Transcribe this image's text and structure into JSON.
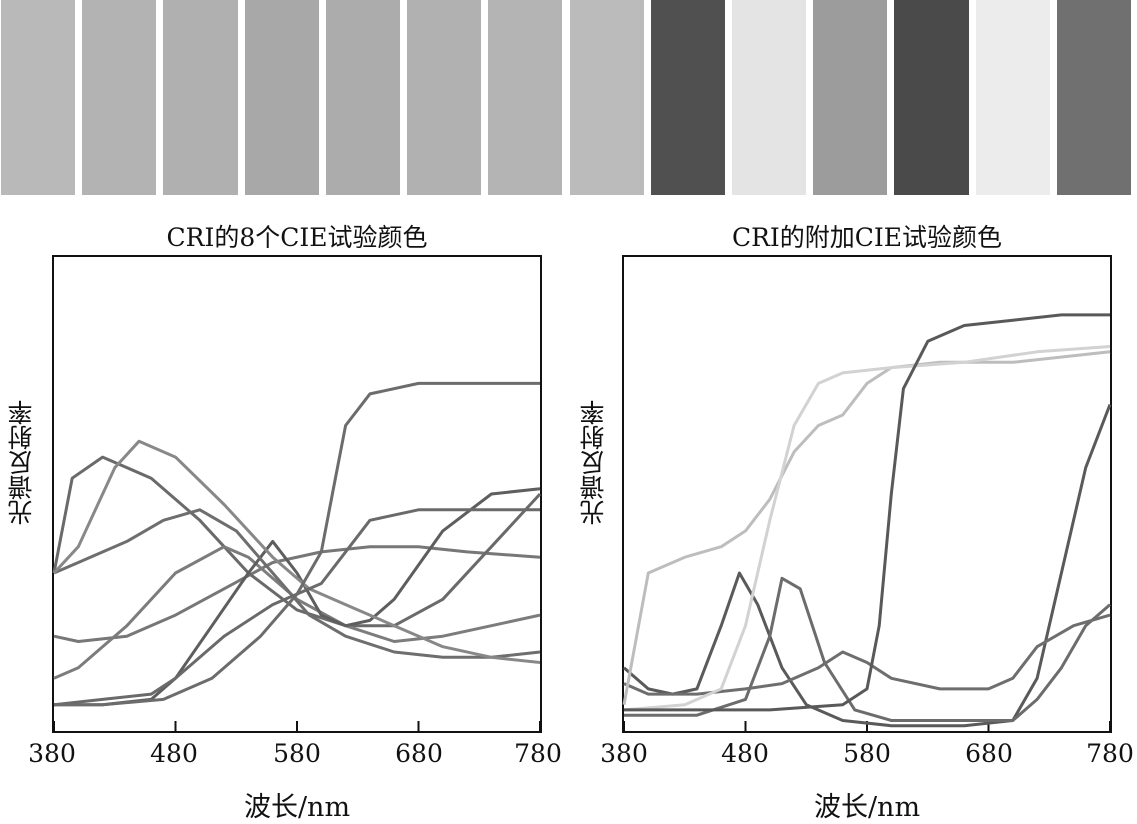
{
  "swatches": [
    "#b9b9b9",
    "#b3b3b3",
    "#b0b0b0",
    "#a8a8a8",
    "#acacac",
    "#b1b1b1",
    "#b4b4b4",
    "#bbbbbb",
    "#505050",
    "#e4e4e4",
    "#9c9c9c",
    "#4a4a4a",
    "#ececec",
    "#707070"
  ],
  "chart_data": [
    {
      "type": "line",
      "title": "CRI的8个CIE试验颜色",
      "xlabel": "波长/nm",
      "ylabel": "光谱反射率",
      "xlim": [
        380,
        780
      ],
      "x_ticks": [
        "380",
        "480",
        "580",
        "680",
        "780"
      ],
      "grid": false,
      "series": [
        {
          "color": "#777777",
          "points": [
            [
              380,
              0.18
            ],
            [
              400,
              0.17
            ],
            [
              440,
              0.18
            ],
            [
              480,
              0.22
            ],
            [
              520,
              0.27
            ],
            [
              560,
              0.32
            ],
            [
              600,
              0.34
            ],
            [
              640,
              0.35
            ],
            [
              680,
              0.35
            ],
            [
              720,
              0.34
            ],
            [
              780,
              0.33
            ]
          ]
        },
        {
          "color": "#6a6a6a",
          "points": [
            [
              380,
              0.3
            ],
            [
              395,
              0.48
            ],
            [
              420,
              0.52
            ],
            [
              460,
              0.48
            ],
            [
              500,
              0.4
            ],
            [
              540,
              0.3
            ],
            [
              580,
              0.23
            ],
            [
              620,
              0.2
            ],
            [
              660,
              0.2
            ],
            [
              700,
              0.25
            ],
            [
              740,
              0.35
            ],
            [
              780,
              0.45
            ]
          ]
        },
        {
          "color": "#7c7c7c",
          "points": [
            [
              380,
              0.1
            ],
            [
              400,
              0.12
            ],
            [
              440,
              0.2
            ],
            [
              480,
              0.3
            ],
            [
              520,
              0.35
            ],
            [
              540,
              0.33
            ],
            [
              580,
              0.25
            ],
            [
              620,
              0.2
            ],
            [
              660,
              0.17
            ],
            [
              700,
              0.18
            ],
            [
              740,
              0.2
            ],
            [
              780,
              0.22
            ]
          ]
        },
        {
          "color": "#5e5e5e",
          "points": [
            [
              380,
              0.05
            ],
            [
              420,
              0.05
            ],
            [
              460,
              0.06
            ],
            [
              480,
              0.1
            ],
            [
              510,
              0.2
            ],
            [
              540,
              0.3
            ],
            [
              560,
              0.36
            ],
            [
              580,
              0.3
            ],
            [
              600,
              0.22
            ],
            [
              620,
              0.2
            ],
            [
              640,
              0.21
            ],
            [
              660,
              0.25
            ],
            [
              700,
              0.38
            ],
            [
              740,
              0.45
            ],
            [
              780,
              0.46
            ]
          ]
        },
        {
          "color": "#6e6e6e",
          "points": [
            [
              380,
              0.3
            ],
            [
              400,
              0.32
            ],
            [
              440,
              0.36
            ],
            [
              470,
              0.4
            ],
            [
              500,
              0.42
            ],
            [
              530,
              0.38
            ],
            [
              560,
              0.3
            ],
            [
              590,
              0.22
            ],
            [
              620,
              0.18
            ],
            [
              660,
              0.15
            ],
            [
              700,
              0.14
            ],
            [
              740,
              0.14
            ],
            [
              780,
              0.15
            ]
          ]
        },
        {
          "color": "#888888",
          "points": [
            [
              380,
              0.3
            ],
            [
              400,
              0.35
            ],
            [
              430,
              0.5
            ],
            [
              450,
              0.55
            ],
            [
              480,
              0.52
            ],
            [
              520,
              0.43
            ],
            [
              560,
              0.33
            ],
            [
              590,
              0.27
            ],
            [
              620,
              0.24
            ],
            [
              660,
              0.2
            ],
            [
              700,
              0.16
            ],
            [
              740,
              0.14
            ],
            [
              780,
              0.13
            ]
          ]
        },
        {
          "color": "#6a6a6a",
          "points": [
            [
              380,
              0.05
            ],
            [
              420,
              0.06
            ],
            [
              460,
              0.07
            ],
            [
              480,
              0.1
            ],
            [
              520,
              0.18
            ],
            [
              560,
              0.24
            ],
            [
              600,
              0.28
            ],
            [
              620,
              0.34
            ],
            [
              640,
              0.4
            ],
            [
              680,
              0.42
            ],
            [
              720,
              0.42
            ],
            [
              780,
              0.42
            ]
          ]
        },
        {
          "color": "#6c6c6c",
          "points": [
            [
              380,
              0.05
            ],
            [
              420,
              0.05
            ],
            [
              470,
              0.06
            ],
            [
              510,
              0.1
            ],
            [
              550,
              0.18
            ],
            [
              580,
              0.26
            ],
            [
              600,
              0.34
            ],
            [
              610,
              0.46
            ],
            [
              620,
              0.58
            ],
            [
              640,
              0.64
            ],
            [
              680,
              0.66
            ],
            [
              720,
              0.66
            ],
            [
              780,
              0.66
            ]
          ]
        }
      ]
    },
    {
      "type": "line",
      "title": "CRI的附加CIE试验颜色",
      "xlabel": "波长/nm",
      "ylabel": "光谱反射率",
      "xlim": [
        380,
        780
      ],
      "x_ticks": [
        "380",
        "480",
        "580",
        "680",
        "780"
      ],
      "grid": false,
      "series": [
        {
          "color": "#5a5a5a",
          "points": [
            [
              380,
              0.12
            ],
            [
              400,
              0.08
            ],
            [
              420,
              0.07
            ],
            [
              440,
              0.08
            ],
            [
              460,
              0.2
            ],
            [
              475,
              0.3
            ],
            [
              490,
              0.24
            ],
            [
              510,
              0.12
            ],
            [
              530,
              0.05
            ],
            [
              560,
              0.02
            ],
            [
              600,
              0.01
            ],
            [
              660,
              0.01
            ],
            [
              700,
              0.02
            ],
            [
              720,
              0.1
            ],
            [
              740,
              0.3
            ],
            [
              760,
              0.5
            ],
            [
              780,
              0.62
            ]
          ]
        },
        {
          "color": "#6c6c6c",
          "points": [
            [
              380,
              0.03
            ],
            [
              440,
              0.03
            ],
            [
              480,
              0.06
            ],
            [
              500,
              0.18
            ],
            [
              510,
              0.29
            ],
            [
              525,
              0.27
            ],
            [
              545,
              0.13
            ],
            [
              570,
              0.04
            ],
            [
              600,
              0.02
            ],
            [
              660,
              0.02
            ],
            [
              700,
              0.02
            ],
            [
              720,
              0.06
            ],
            [
              740,
              0.12
            ],
            [
              760,
              0.2
            ],
            [
              780,
              0.24
            ]
          ]
        },
        {
          "color": "#6e6e6e",
          "points": [
            [
              380,
              0.09
            ],
            [
              400,
              0.07
            ],
            [
              440,
              0.07
            ],
            [
              480,
              0.08
            ],
            [
              510,
              0.09
            ],
            [
              540,
              0.12
            ],
            [
              560,
              0.15
            ],
            [
              580,
              0.13
            ],
            [
              600,
              0.1
            ],
            [
              640,
              0.08
            ],
            [
              680,
              0.08
            ],
            [
              700,
              0.1
            ],
            [
              720,
              0.16
            ],
            [
              750,
              0.2
            ],
            [
              780,
              0.22
            ]
          ]
        },
        {
          "color": "#bdbdbd",
          "points": [
            [
              380,
              0.05
            ],
            [
              400,
              0.3
            ],
            [
              430,
              0.33
            ],
            [
              460,
              0.35
            ],
            [
              480,
              0.38
            ],
            [
              500,
              0.44
            ],
            [
              520,
              0.53
            ],
            [
              540,
              0.58
            ],
            [
              560,
              0.6
            ],
            [
              580,
              0.66
            ],
            [
              600,
              0.69
            ],
            [
              640,
              0.7
            ],
            [
              700,
              0.7
            ],
            [
              780,
              0.72
            ]
          ]
        },
        {
          "color": "#d2d2d2",
          "points": [
            [
              380,
              0.04
            ],
            [
              430,
              0.05
            ],
            [
              460,
              0.08
            ],
            [
              480,
              0.2
            ],
            [
              500,
              0.4
            ],
            [
              520,
              0.58
            ],
            [
              540,
              0.66
            ],
            [
              560,
              0.68
            ],
            [
              600,
              0.69
            ],
            [
              660,
              0.7
            ],
            [
              720,
              0.72
            ],
            [
              780,
              0.73
            ]
          ]
        },
        {
          "color": "#595959",
          "points": [
            [
              380,
              0.04
            ],
            [
              440,
              0.04
            ],
            [
              500,
              0.04
            ],
            [
              560,
              0.05
            ],
            [
              580,
              0.08
            ],
            [
              590,
              0.2
            ],
            [
              600,
              0.45
            ],
            [
              610,
              0.65
            ],
            [
              630,
              0.74
            ],
            [
              660,
              0.77
            ],
            [
              700,
              0.78
            ],
            [
              740,
              0.79
            ],
            [
              780,
              0.79
            ]
          ]
        }
      ]
    }
  ]
}
